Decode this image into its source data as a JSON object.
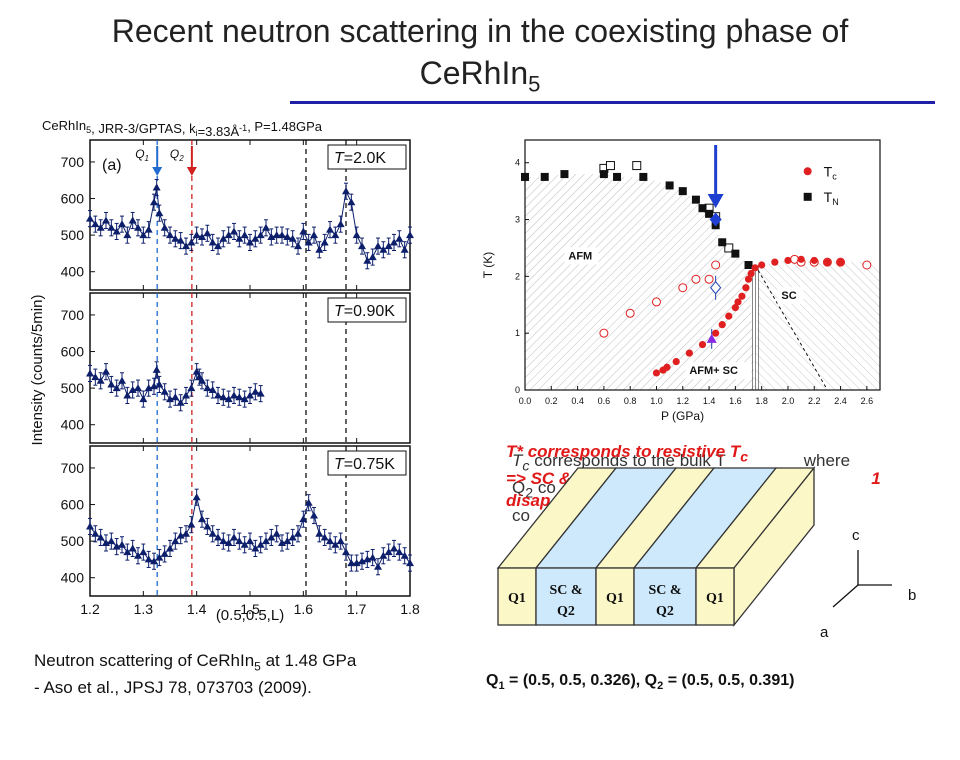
{
  "slide": {
    "title_line1": "Recent neutron scattering in the coexisting phase of",
    "title_line2": "CeRhIn",
    "title_sub": "5",
    "caption_line1_pre": "Neutron scattering of CeRhIn",
    "caption_line1_sub": "5",
    "caption_line1_post": " at 1.48 GPa",
    "caption_line2": "- Aso et al., JPSJ 78, 073703 (2009).",
    "q_pre": "Q",
    "q1_sub": "1",
    "q1_val": " = (0.5, 0.5, 0.326),  ",
    "q2_sub": "2",
    "q2_val": " = (0.5, 0.5, 0.391)",
    "overlay_black_1": "T",
    "overlay_black_1_sub": "c",
    "overlay_black_1_rest": " corresponds to the bulk T",
    "overlay_black_1_tail": "where",
    "overlay_black_2": "Q",
    "overlay_black_2_sub": "2",
    "overlay_black_2_rest": " co",
    "overlay_black_2_tail": "d",
    "overlay_black_3": "co",
    "overlay_red_1": "T* corresponds to resistive T",
    "overlay_red_1_sub": "c",
    "overlay_red_2": "=> SC &",
    "overlay_red_2_tail": "1",
    "overlay_red_3": "disap",
    "slab_labels": [
      "Q1",
      "SC &",
      "Q2",
      "Q1",
      "SC &",
      "Q2",
      "Q1"
    ],
    "axis_c": "c",
    "axis_b": "b",
    "axis_a": "a"
  },
  "chart_data": [
    {
      "type": "scatter",
      "header_pre": "CeRhIn",
      "header_sub": "5",
      "header_mid": ", JRR-3/GPTAS, k",
      "header_ksub": "i",
      "header_kval": "=3.83Å",
      "header_exp": "-1",
      "header_post": ", P=1.48GPa",
      "panel_label": "(a)",
      "xlabel": "(0.5,0.5,L)",
      "ylabel": "Intensity (counts/5min)",
      "xlim": [
        1.2,
        1.8
      ],
      "ylim": [
        350,
        760
      ],
      "xticks": [
        "1.2",
        "1.3",
        "1.4",
        "1.5",
        "1.6",
        "1.7",
        "1.8"
      ],
      "yticks": [
        "400",
        "500",
        "600",
        "700"
      ],
      "markers": [
        {
          "name": "Q1",
          "label": "Q",
          "sub": "1",
          "x": 1.326,
          "color": "#1f6bd0"
        },
        {
          "name": "Q2",
          "label": "Q",
          "sub": "2",
          "x": 1.391,
          "color": "#d02020"
        }
      ],
      "dashed_lines_black": [
        1.605,
        1.68
      ],
      "panels": [
        {
          "temp_pre": "T",
          "temp_val": "=2.0K",
          "x": [
            1.2,
            1.21,
            1.22,
            1.23,
            1.24,
            1.25,
            1.26,
            1.27,
            1.28,
            1.29,
            1.3,
            1.31,
            1.32,
            1.325,
            1.33,
            1.34,
            1.35,
            1.36,
            1.37,
            1.38,
            1.39,
            1.4,
            1.41,
            1.42,
            1.43,
            1.44,
            1.45,
            1.46,
            1.47,
            1.48,
            1.49,
            1.5,
            1.51,
            1.52,
            1.53,
            1.54,
            1.55,
            1.56,
            1.57,
            1.58,
            1.59,
            1.6,
            1.61,
            1.62,
            1.63,
            1.64,
            1.65,
            1.66,
            1.67,
            1.68,
            1.69,
            1.7,
            1.71,
            1.72,
            1.73,
            1.74,
            1.75,
            1.76,
            1.77,
            1.78,
            1.79,
            1.8
          ],
          "y": [
            545,
            530,
            520,
            540,
            520,
            510,
            530,
            500,
            540,
            520,
            500,
            515,
            590,
            630,
            560,
            520,
            500,
            490,
            485,
            470,
            480,
            500,
            495,
            505,
            480,
            470,
            490,
            500,
            510,
            490,
            500,
            480,
            490,
            500,
            520,
            495,
            500,
            500,
            495,
            490,
            470,
            510,
            480,
            500,
            460,
            480,
            515,
            500,
            530,
            620,
            590,
            500,
            470,
            430,
            440,
            470,
            460,
            470,
            480,
            490,
            460,
            500
          ]
        },
        {
          "temp_pre": "T",
          "temp_val": "=0.90K",
          "x": [
            1.2,
            1.21,
            1.22,
            1.23,
            1.24,
            1.25,
            1.26,
            1.27,
            1.28,
            1.29,
            1.3,
            1.31,
            1.32,
            1.325,
            1.33,
            1.34,
            1.35,
            1.36,
            1.37,
            1.38,
            1.39,
            1.4,
            1.405,
            1.41,
            1.42,
            1.43,
            1.44,
            1.45,
            1.46,
            1.47,
            1.48,
            1.49,
            1.5,
            1.51,
            1.52
          ],
          "y": [
            540,
            530,
            520,
            545,
            510,
            500,
            520,
            480,
            495,
            500,
            470,
            500,
            505,
            550,
            510,
            490,
            470,
            475,
            460,
            480,
            500,
            545,
            530,
            520,
            500,
            495,
            480,
            475,
            470,
            480,
            475,
            470,
            480,
            490,
            485
          ]
        },
        {
          "temp_pre": "T",
          "temp_val": "=0.75K",
          "x": [
            1.2,
            1.21,
            1.22,
            1.23,
            1.24,
            1.25,
            1.26,
            1.27,
            1.28,
            1.29,
            1.3,
            1.31,
            1.32,
            1.33,
            1.34,
            1.35,
            1.36,
            1.37,
            1.38,
            1.39,
            1.4,
            1.41,
            1.42,
            1.43,
            1.44,
            1.45,
            1.46,
            1.47,
            1.48,
            1.49,
            1.5,
            1.51,
            1.52,
            1.53,
            1.54,
            1.55,
            1.56,
            1.57,
            1.58,
            1.59,
            1.6,
            1.61,
            1.62,
            1.63,
            1.64,
            1.65,
            1.66,
            1.67,
            1.68,
            1.69,
            1.7,
            1.71,
            1.72,
            1.73,
            1.74,
            1.75,
            1.76,
            1.77,
            1.78,
            1.79,
            1.8
          ],
          "y": [
            540,
            520,
            510,
            495,
            500,
            485,
            490,
            470,
            480,
            460,
            470,
            450,
            445,
            455,
            465,
            480,
            500,
            515,
            520,
            545,
            620,
            560,
            540,
            520,
            510,
            500,
            495,
            510,
            500,
            490,
            500,
            480,
            490,
            500,
            510,
            520,
            495,
            500,
            510,
            520,
            560,
            605,
            570,
            520,
            510,
            500,
            490,
            500,
            470,
            440,
            440,
            445,
            450,
            455,
            430,
            460,
            470,
            480,
            470,
            460,
            440
          ]
        }
      ]
    },
    {
      "type": "scatter",
      "xlabel": "P (GPa)",
      "ylabel": "T (K)",
      "xlim": [
        0,
        2.7
      ],
      "ylim": [
        0,
        4.4
      ],
      "xticks": [
        0.0,
        0.2,
        0.4,
        0.6,
        0.8,
        1.0,
        1.2,
        1.4,
        1.6,
        1.8,
        2.0,
        2.2,
        2.4,
        2.6
      ],
      "xtick_labels": [
        "0.0",
        "0.2",
        "0.4",
        "0.6",
        "0.8",
        "1.0",
        "1.2",
        "1.4",
        "1.6",
        "1.8",
        "2.0",
        "2.2",
        "2.4",
        "2.6"
      ],
      "yticks": [
        0,
        1,
        2,
        3,
        4
      ],
      "ytick_labels": [
        "0",
        "1",
        "2",
        "3",
        "4"
      ],
      "legend": [
        {
          "label": "T",
          "sub": "c",
          "color": "#e02020",
          "marker": "filled-circle"
        },
        {
          "label": "T",
          "sub": "N",
          "color": "#111111",
          "marker": "filled-square"
        }
      ],
      "region_labels": [
        "AFM",
        "SC",
        "AFM+ SC"
      ],
      "TN_filled": {
        "x": [
          0,
          0.15,
          0.3,
          0.6,
          0.7,
          0.9,
          1.1,
          1.2,
          1.3,
          1.35,
          1.4,
          1.45,
          1.5,
          1.6,
          1.7
        ],
        "y": [
          3.75,
          3.75,
          3.8,
          3.8,
          3.75,
          3.75,
          3.6,
          3.5,
          3.35,
          3.2,
          3.1,
          2.9,
          2.6,
          2.4,
          2.2
        ]
      },
      "TN_open": {
        "x": [
          0.6,
          0.65,
          0.85,
          1.4,
          1.45,
          1.55
        ],
        "y": [
          3.9,
          3.95,
          3.95,
          3.2,
          3.05,
          2.5
        ]
      },
      "Tc_filled": {
        "x": [
          1.0,
          1.05,
          1.08,
          1.15,
          1.25,
          1.35,
          1.45,
          1.5,
          1.55,
          1.6,
          1.62,
          1.65,
          1.68,
          1.7,
          1.72,
          1.75,
          1.8,
          1.9,
          2.0,
          2.1,
          2.2,
          2.3,
          2.4
        ],
        "y": [
          0.3,
          0.35,
          0.4,
          0.5,
          0.65,
          0.8,
          1.0,
          1.15,
          1.3,
          1.45,
          1.55,
          1.65,
          1.8,
          1.95,
          2.05,
          2.15,
          2.2,
          2.25,
          2.28,
          2.3,
          2.28,
          2.25,
          2.25
        ]
      },
      "Tc_open": {
        "x": [
          0.6,
          0.8,
          1.0,
          1.2,
          1.3,
          1.4,
          1.45,
          2.05,
          2.1,
          2.2,
          2.3,
          2.4,
          2.6
        ],
        "y": [
          1.0,
          1.35,
          1.55,
          1.8,
          1.95,
          1.95,
          2.2,
          2.3,
          2.25,
          2.25,
          2.25,
          2.25,
          2.2
        ]
      },
      "blue_diamond": {
        "x": 1.45,
        "y": 3.0
      },
      "open_diamond": {
        "x": 1.45,
        "y": 1.8
      },
      "purple_triangle": {
        "x": 1.42,
        "y": 0.9
      },
      "arrow_x": 1.45
    }
  ]
}
